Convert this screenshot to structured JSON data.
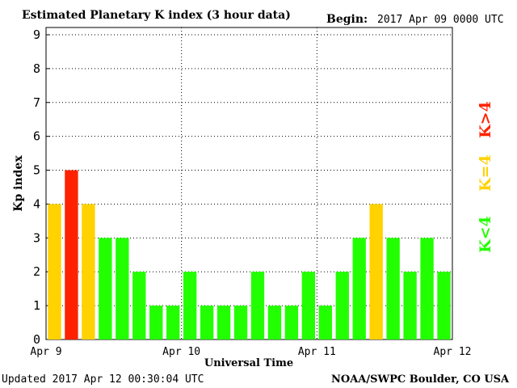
{
  "header": {
    "title": "Estimated Planetary K index (3 hour data)",
    "begin_label": "Begin:",
    "begin_value": "2017 Apr 09 0000 UTC"
  },
  "footer": {
    "updated": "Updated 2017 Apr 12 00:30:04 UTC",
    "credit": "NOAA/SWPC Boulder, CO USA"
  },
  "legend": {
    "above": "K>4",
    "equal": "K=4",
    "below": "K<4"
  },
  "colors": {
    "above": "#ff2200",
    "equal": "#ffd200",
    "below": "#22ff00",
    "frame": "#000000",
    "grid": "#000000"
  },
  "chart_data": {
    "type": "bar",
    "title": "Estimated Planetary K index (3 hour data)",
    "xlabel": "Universal Time",
    "ylabel": "Kp index",
    "ylim": [
      0,
      9
    ],
    "yticks": [
      "0",
      "1",
      "2",
      "3",
      "4",
      "5",
      "6",
      "7",
      "8",
      "9"
    ],
    "xticks": [
      "Apr 9",
      "Apr 10",
      "Apr 11",
      "Apr 12"
    ],
    "grid": true,
    "values": [
      4,
      5,
      4,
      3,
      3,
      2,
      1,
      1,
      2,
      1,
      1,
      1,
      2,
      1,
      1,
      2,
      1,
      2,
      3,
      4,
      3,
      2,
      3,
      2
    ],
    "color_rule": "red if K>4, yellow if K=4, green if K<4"
  }
}
